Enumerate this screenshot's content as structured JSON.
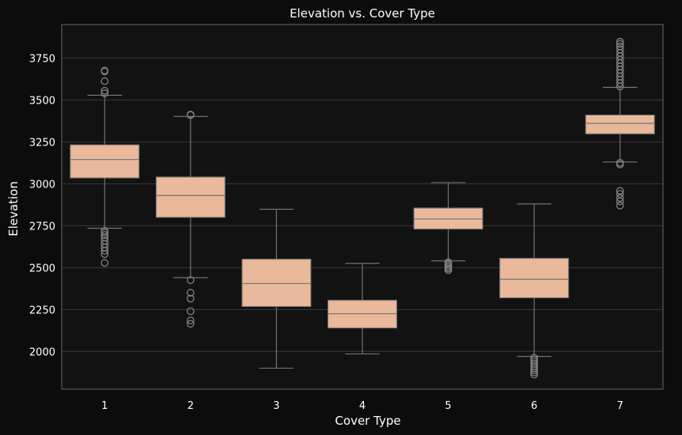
{
  "colors": {
    "page_bg": "#0c0c0c",
    "plot_bg": "#121212",
    "grid": "#3a3a3a",
    "frame": "#5a5a5a",
    "box_fill": "#eab89a",
    "whisker": "#7a7a7a",
    "outlier": "#808080",
    "text": "#ffffff"
  },
  "chart_data": {
    "type": "box",
    "title": "Elevation vs. Cover Type",
    "xlabel": "Cover Type",
    "ylabel": "Elevation",
    "ylim": [
      1775,
      3950
    ],
    "yticks": [
      2000,
      2250,
      2500,
      2750,
      3000,
      3250,
      3500,
      3750
    ],
    "grid": true,
    "categories": [
      "1",
      "2",
      "3",
      "4",
      "5",
      "6",
      "7"
    ],
    "boxes": [
      {
        "category": "1",
        "whisker_low": 2735,
        "q1": 3035,
        "median": 3145,
        "q3": 3232,
        "whisker_high": 3528,
        "outliers": [
          2528,
          2580,
          2600,
          2620,
          2640,
          2660,
          2680,
          2695,
          2708,
          2720,
          3540,
          3555,
          3612,
          3670,
          3675
        ]
      },
      {
        "category": "2",
        "whisker_low": 2440,
        "q1": 2800,
        "median": 2930,
        "q3": 3040,
        "whisker_high": 3402,
        "outliers": [
          2165,
          2185,
          2240,
          2315,
          2350,
          2425,
          3410,
          3413
        ]
      },
      {
        "category": "3",
        "whisker_low": 1900,
        "q1": 2268,
        "median": 2405,
        "q3": 2550,
        "whisker_high": 2848,
        "outliers": []
      },
      {
        "category": "4",
        "whisker_low": 1985,
        "q1": 2140,
        "median": 2225,
        "q3": 2305,
        "whisker_high": 2525,
        "outliers": []
      },
      {
        "category": "5",
        "whisker_low": 2540,
        "q1": 2730,
        "median": 2790,
        "q3": 2855,
        "whisker_high": 3007,
        "outliers": [
          2485,
          2495,
          2505,
          2515,
          2525,
          2532
        ]
      },
      {
        "category": "6",
        "whisker_low": 1970,
        "q1": 2320,
        "median": 2430,
        "q3": 2555,
        "whisker_high": 2880,
        "outliers": [
          1862,
          1875,
          1888,
          1900,
          1912,
          1925,
          1938,
          1950,
          1962
        ]
      },
      {
        "category": "7",
        "whisker_low": 3130,
        "q1": 3298,
        "median": 3360,
        "q3": 3410,
        "whisker_high": 3575,
        "outliers": [
          2870,
          2895,
          2915,
          2940,
          2958,
          3115,
          3125,
          3580,
          3600,
          3620,
          3640,
          3660,
          3680,
          3700,
          3720,
          3740,
          3760,
          3780,
          3800,
          3820,
          3835,
          3848
        ]
      }
    ]
  }
}
